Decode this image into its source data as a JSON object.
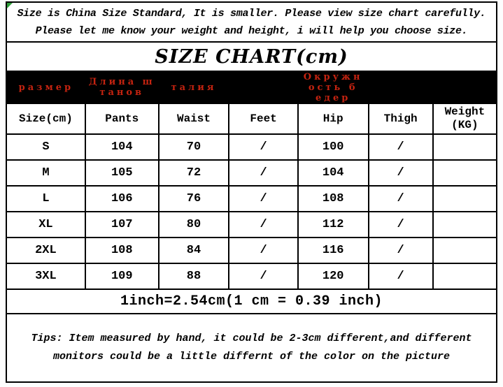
{
  "colors": {
    "russian_label_red": "#c42310",
    "bar_background": "#000000",
    "corner_marker_green": "#2f9e3a",
    "text": "#000000",
    "background": "#ffffff"
  },
  "intro": {
    "text": "Size is China Size Standard, It is smaller. Please view size chart carefully.\nPlease let me know your weight and height, i will help you choose size."
  },
  "title": "SIZE CHART(cm)",
  "russian_bar": {
    "labels": [
      "размер",
      "Длина ш\nтанов",
      "талия",
      "",
      "Окружн\nость б\nедер",
      "",
      ""
    ]
  },
  "table": {
    "headers": [
      "Size(cm)",
      "Pants",
      "Waist",
      "Feet",
      "Hip",
      "Thigh",
      "Weight\n(KG)"
    ],
    "rows": [
      [
        "S",
        "104",
        "70",
        "/",
        "100",
        "/",
        ""
      ],
      [
        "M",
        "105",
        "72",
        "/",
        "104",
        "/",
        ""
      ],
      [
        "L",
        "106",
        "76",
        "/",
        "108",
        "/",
        ""
      ],
      [
        "XL",
        "107",
        "80",
        "/",
        "112",
        "/",
        ""
      ],
      [
        "2XL",
        "108",
        "84",
        "/",
        "116",
        "/",
        ""
      ],
      [
        "3XL",
        "109",
        "88",
        "/",
        "120",
        "/",
        ""
      ]
    ]
  },
  "footer": {
    "conversion": "1inch=2.54cm(1 cm = 0.39 inch)",
    "tips": "Tips: Item measured by hand, it could be 2-3cm different,and different\nmonitors could be a little differnt of the color on the picture"
  }
}
